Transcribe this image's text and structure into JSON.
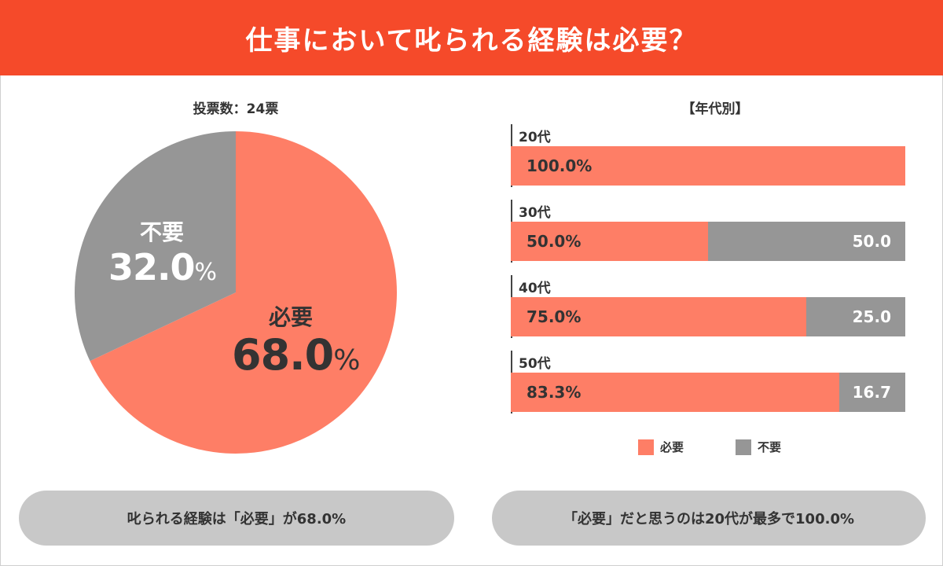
{
  "header": {
    "title": "仕事において叱られる経験は必要？"
  },
  "colors": {
    "header": "#f54a2a",
    "need": "#fe7e66",
    "noneed": "#969696",
    "pill": "#c8c8c8"
  },
  "pie": {
    "caption": "投票数：24票",
    "need": {
      "name": "必要",
      "value": "68.0",
      "unit": "%"
    },
    "noneed": {
      "name": "不要",
      "value": "32.0",
      "unit": "%"
    }
  },
  "bars": {
    "caption": "【年代別】",
    "rows": [
      {
        "age": "20代",
        "need_label": "100.0%",
        "noneed_label": ""
      },
      {
        "age": "30代",
        "need_label": "50.0%",
        "noneed_label": "50.0"
      },
      {
        "age": "40代",
        "need_label": "75.0%",
        "noneed_label": "25.0"
      },
      {
        "age": "50代",
        "need_label": "83.3%",
        "noneed_label": "16.7"
      }
    ]
  },
  "legend": {
    "need": "必要",
    "noneed": "不要"
  },
  "footer": {
    "left": "叱られる経験は「必要」が68.0%",
    "right": "「必要」だと思うのは20代が最多で100.0%"
  },
  "chart_data": [
    {
      "type": "pie",
      "title": "投票数：24票",
      "categories": [
        "必要",
        "不要"
      ],
      "values": [
        68.0,
        32.0
      ],
      "colors": [
        "#fe7e66",
        "#969696"
      ]
    },
    {
      "type": "bar",
      "orientation": "horizontal",
      "stacked": true,
      "title": "【年代別】",
      "categories": [
        "20代",
        "30代",
        "40代",
        "50代"
      ],
      "series": [
        {
          "name": "必要",
          "values": [
            100.0,
            50.0,
            75.0,
            83.3
          ],
          "color": "#fe7e66"
        },
        {
          "name": "不要",
          "values": [
            0.0,
            50.0,
            25.0,
            16.7
          ],
          "color": "#969696"
        }
      ],
      "xlim": [
        0,
        100
      ],
      "legend": "bottom"
    }
  ]
}
